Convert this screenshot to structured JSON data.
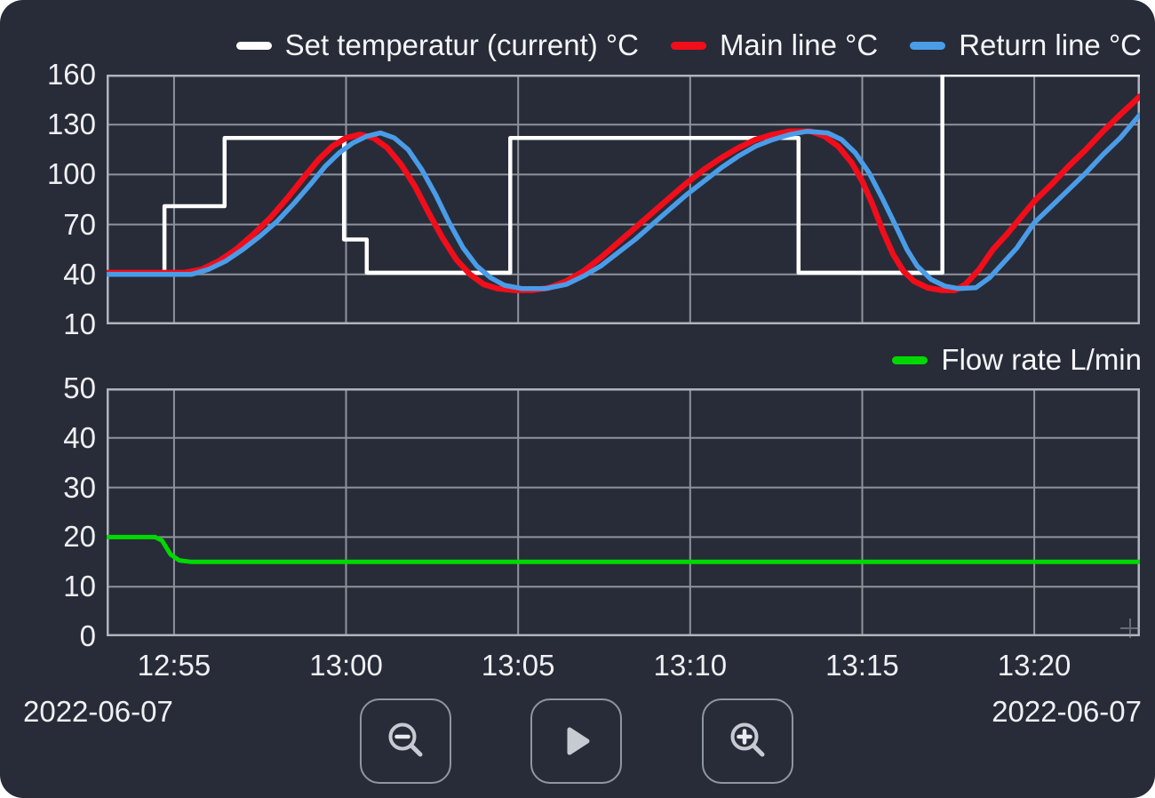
{
  "theme": {
    "panel_bg": "#282c38",
    "grid_color": "#8d939d",
    "axis_border_color": "#aeb4bd",
    "text_color": "#eef0f3",
    "button_border_color": "#8f97a1",
    "icon_color": "#c6cbd2",
    "icon_accent_color": "#e9ebee"
  },
  "toolbar": {
    "buttons": [
      {
        "id": "zoom-out",
        "icon": "magnifier-minus-icon"
      },
      {
        "id": "play",
        "icon": "play-icon"
      },
      {
        "id": "zoom-in",
        "icon": "magnifier-plus-icon"
      }
    ]
  },
  "chart_data": [
    {
      "type": "line",
      "y_axis": {
        "min": 10,
        "max": 160,
        "ticks": [
          160,
          130,
          100,
          70,
          40,
          10
        ]
      },
      "x_axis": {
        "t_min": -1.96,
        "t_max": 28.07,
        "tick_t": [
          0,
          5,
          10,
          15,
          20,
          25
        ]
      },
      "grid": true,
      "legend_position": "top-right",
      "series": [
        {
          "name": "Set temperatur (current) °C",
          "color": "#ffffff",
          "line_width": 4.5,
          "points": [
            [
              -1.96,
              41
            ],
            [
              -0.28,
              41
            ],
            [
              -0.28,
              81
            ],
            [
              1.47,
              81
            ],
            [
              1.47,
              122
            ],
            [
              4.94,
              122
            ],
            [
              4.94,
              61
            ],
            [
              5.6,
              61
            ],
            [
              5.6,
              41
            ],
            [
              9.77,
              41
            ],
            [
              9.77,
              122
            ],
            [
              18.15,
              122
            ],
            [
              18.15,
              41
            ],
            [
              22.33,
              41
            ],
            [
              22.33,
              160
            ],
            [
              28.07,
              160
            ]
          ]
        },
        {
          "name": "Main line °C",
          "color": "#f20d1a",
          "line_width": 6.5,
          "points": [
            [
              -1.96,
              41
            ],
            [
              0.3,
              41
            ],
            [
              0.8,
              43
            ],
            [
              1.3,
              48
            ],
            [
              1.8,
              55
            ],
            [
              2.3,
              64
            ],
            [
              2.8,
              74
            ],
            [
              3.3,
              86
            ],
            [
              3.8,
              99
            ],
            [
              4.2,
              109
            ],
            [
              4.6,
              117
            ],
            [
              5.0,
              122
            ],
            [
              5.4,
              124
            ],
            [
              5.8,
              122
            ],
            [
              6.2,
              116
            ],
            [
              6.6,
              106
            ],
            [
              7.0,
              93
            ],
            [
              7.4,
              77
            ],
            [
              7.8,
              62
            ],
            [
              8.2,
              49
            ],
            [
              8.6,
              40
            ],
            [
              9.0,
              34
            ],
            [
              9.4,
              31.5
            ],
            [
              9.9,
              30.5
            ],
            [
              10.4,
              30.5
            ],
            [
              10.9,
              32
            ],
            [
              11.4,
              36
            ],
            [
              11.9,
              42
            ],
            [
              12.4,
              50
            ],
            [
              12.9,
              59
            ],
            [
              13.4,
              68
            ],
            [
              13.9,
              77
            ],
            [
              14.4,
              86
            ],
            [
              14.9,
              95
            ],
            [
              15.4,
              103
            ],
            [
              15.9,
              110
            ],
            [
              16.4,
              116
            ],
            [
              16.9,
              121
            ],
            [
              17.4,
              124
            ],
            [
              17.9,
              126
            ],
            [
              18.5,
              126
            ],
            [
              18.9,
              123
            ],
            [
              19.3,
              117
            ],
            [
              19.7,
              107
            ],
            [
              20.0,
              96
            ],
            [
              20.3,
              82
            ],
            [
              20.6,
              66
            ],
            [
              20.9,
              52
            ],
            [
              21.2,
              42
            ],
            [
              21.5,
              36
            ],
            [
              21.9,
              32
            ],
            [
              22.3,
              30.5
            ],
            [
              22.7,
              30.5
            ],
            [
              23.0,
              34
            ],
            [
              23.4,
              43
            ],
            [
              23.8,
              55
            ],
            [
              24.2,
              64
            ],
            [
              24.6,
              74
            ],
            [
              25.0,
              84
            ],
            [
              25.5,
              94
            ],
            [
              26.0,
              105
            ],
            [
              26.5,
              115
            ],
            [
              27.0,
              126
            ],
            [
              27.5,
              136
            ],
            [
              28.07,
              147
            ]
          ]
        },
        {
          "name": "Return line °C",
          "color": "#4a9ce8",
          "line_width": 5.5,
          "points": [
            [
              -1.96,
              40
            ],
            [
              0.5,
              40
            ],
            [
              1.0,
              43
            ],
            [
              1.5,
              48
            ],
            [
              2.0,
              55
            ],
            [
              2.5,
              63
            ],
            [
              3.0,
              72
            ],
            [
              3.5,
              83
            ],
            [
              4.0,
              95
            ],
            [
              4.4,
              105
            ],
            [
              4.8,
              113
            ],
            [
              5.2,
              119
            ],
            [
              5.6,
              123
            ],
            [
              6.0,
              125
            ],
            [
              6.4,
              122
            ],
            [
              6.8,
              115
            ],
            [
              7.2,
              103
            ],
            [
              7.6,
              88
            ],
            [
              8.0,
              71
            ],
            [
              8.4,
              56
            ],
            [
              8.8,
              45
            ],
            [
              9.2,
              38
            ],
            [
              9.6,
              33.5
            ],
            [
              10.1,
              31.5
            ],
            [
              10.8,
              31.5
            ],
            [
              11.4,
              34
            ],
            [
              11.9,
              39
            ],
            [
              12.4,
              45
            ],
            [
              12.9,
              53
            ],
            [
              13.4,
              61
            ],
            [
              13.9,
              70
            ],
            [
              14.4,
              79
            ],
            [
              14.9,
              88
            ],
            [
              15.4,
              96
            ],
            [
              15.9,
              104
            ],
            [
              16.4,
              111
            ],
            [
              16.9,
              117
            ],
            [
              17.4,
              121
            ],
            [
              17.9,
              124
            ],
            [
              18.4,
              126
            ],
            [
              19.0,
              125
            ],
            [
              19.4,
              121
            ],
            [
              19.8,
              113
            ],
            [
              20.2,
              101
            ],
            [
              20.6,
              85
            ],
            [
              21.0,
              68
            ],
            [
              21.3,
              55
            ],
            [
              21.6,
              45
            ],
            [
              22.0,
              37
            ],
            [
              22.4,
              33
            ],
            [
              22.8,
              31.5
            ],
            [
              23.3,
              32
            ],
            [
              23.7,
              38
            ],
            [
              24.1,
              47
            ],
            [
              24.5,
              56
            ],
            [
              25.0,
              71
            ],
            [
              25.5,
              81
            ],
            [
              26.0,
              91
            ],
            [
              26.5,
              101
            ],
            [
              27.0,
              112
            ],
            [
              27.5,
              122
            ],
            [
              28.07,
              136
            ]
          ]
        }
      ]
    },
    {
      "type": "line",
      "y_axis": {
        "min": 0,
        "max": 50,
        "ticks": [
          50,
          40,
          30,
          20,
          10,
          0
        ]
      },
      "x_axis": {
        "t_min": -1.96,
        "t_max": 28.07,
        "tick_t": [
          0,
          5,
          10,
          15,
          20,
          25
        ],
        "tick_labels": [
          "12:55",
          "13:00",
          "13:05",
          "13:10",
          "13:15",
          "13:20"
        ],
        "date_left": "2022-06-07",
        "date_right": "2022-06-07"
      },
      "grid": true,
      "legend_position": "top-right",
      "series": [
        {
          "name": "Flow rate L/min",
          "color": "#00d900",
          "line_width": 5,
          "points": [
            [
              -1.96,
              20
            ],
            [
              -0.55,
              20
            ],
            [
              -0.35,
              19.3
            ],
            [
              -0.1,
              16.5
            ],
            [
              0.15,
              15.3
            ],
            [
              0.5,
              15
            ],
            [
              28.07,
              15
            ]
          ]
        }
      ]
    }
  ]
}
